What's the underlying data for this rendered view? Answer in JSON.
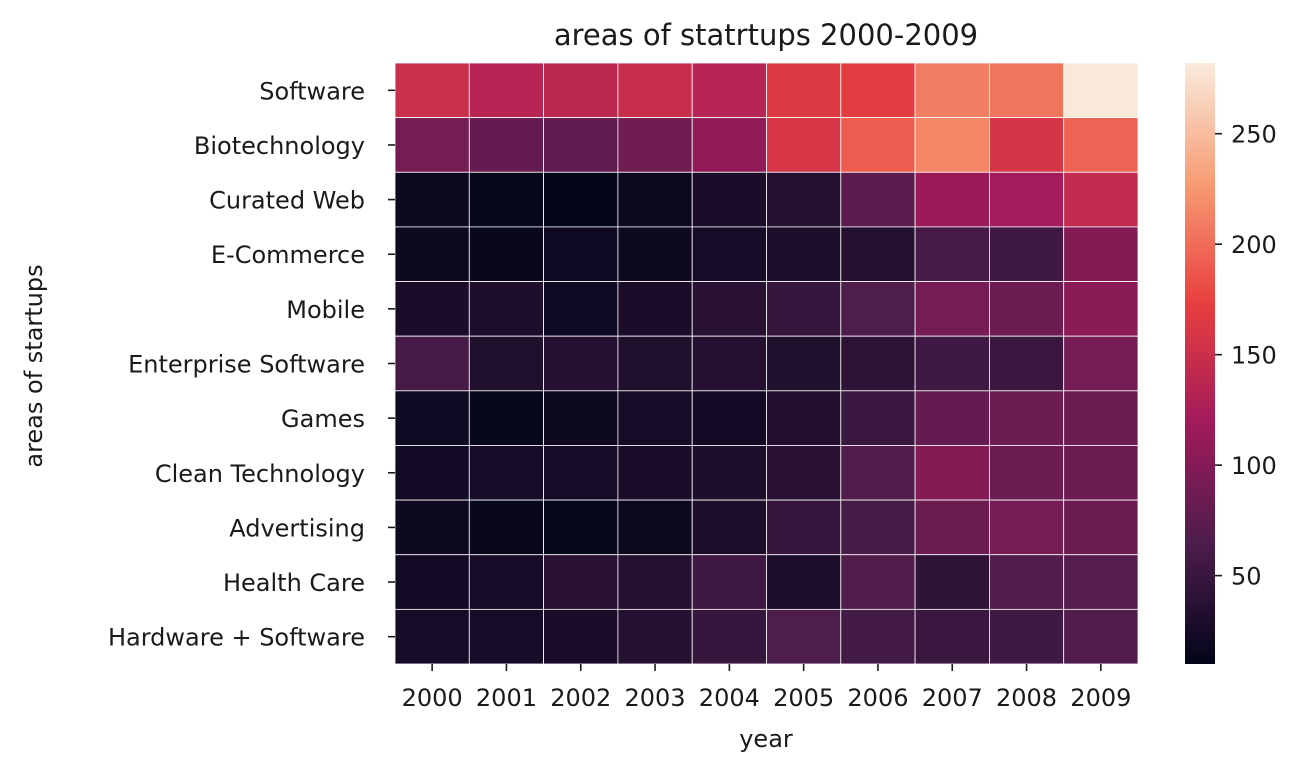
{
  "chart_data": {
    "type": "heatmap",
    "title": "areas of statrtups 2000-2009",
    "xlabel": "year",
    "ylabel": "areas of startups",
    "x": [
      "2000",
      "2001",
      "2002",
      "2003",
      "2004",
      "2005",
      "2006",
      "2007",
      "2008",
      "2009"
    ],
    "y": [
      "Software",
      "Biotechnology",
      "Curated Web",
      "E-Commerce",
      "Mobile",
      "Enterprise Software",
      "Games",
      "Clean Technology",
      "Advertising",
      "Health Care",
      "Hardware + Software"
    ],
    "values": [
      [
        150,
        135,
        138,
        148,
        135,
        165,
        170,
        210,
        205,
        280
      ],
      [
        90,
        80,
        78,
        88,
        110,
        160,
        190,
        215,
        158,
        195
      ],
      [
        18,
        12,
        10,
        15,
        28,
        35,
        75,
        115,
        120,
        145
      ],
      [
        18,
        14,
        20,
        18,
        25,
        30,
        35,
        60,
        55,
        100
      ],
      [
        28,
        30,
        20,
        28,
        38,
        48,
        65,
        90,
        85,
        105
      ],
      [
        60,
        32,
        35,
        32,
        35,
        32,
        42,
        55,
        50,
        90
      ],
      [
        20,
        12,
        18,
        25,
        22,
        33,
        50,
        80,
        85,
        85
      ],
      [
        22,
        25,
        25,
        28,
        30,
        38,
        68,
        100,
        85,
        85
      ],
      [
        18,
        14,
        12,
        16,
        30,
        48,
        60,
        85,
        90,
        85
      ],
      [
        22,
        25,
        38,
        35,
        55,
        30,
        68,
        42,
        68,
        70
      ],
      [
        25,
        25,
        28,
        35,
        48,
        65,
        58,
        50,
        55,
        68
      ]
    ],
    "colorbar": {
      "min": 10,
      "max": 282,
      "ticks": [
        50,
        100,
        150,
        200,
        250
      ]
    },
    "colormap": [
      "#03051a",
      "#4c1d4b",
      "#a11a5b",
      "#e83f3f",
      "#f69c73",
      "#faebdd"
    ]
  }
}
